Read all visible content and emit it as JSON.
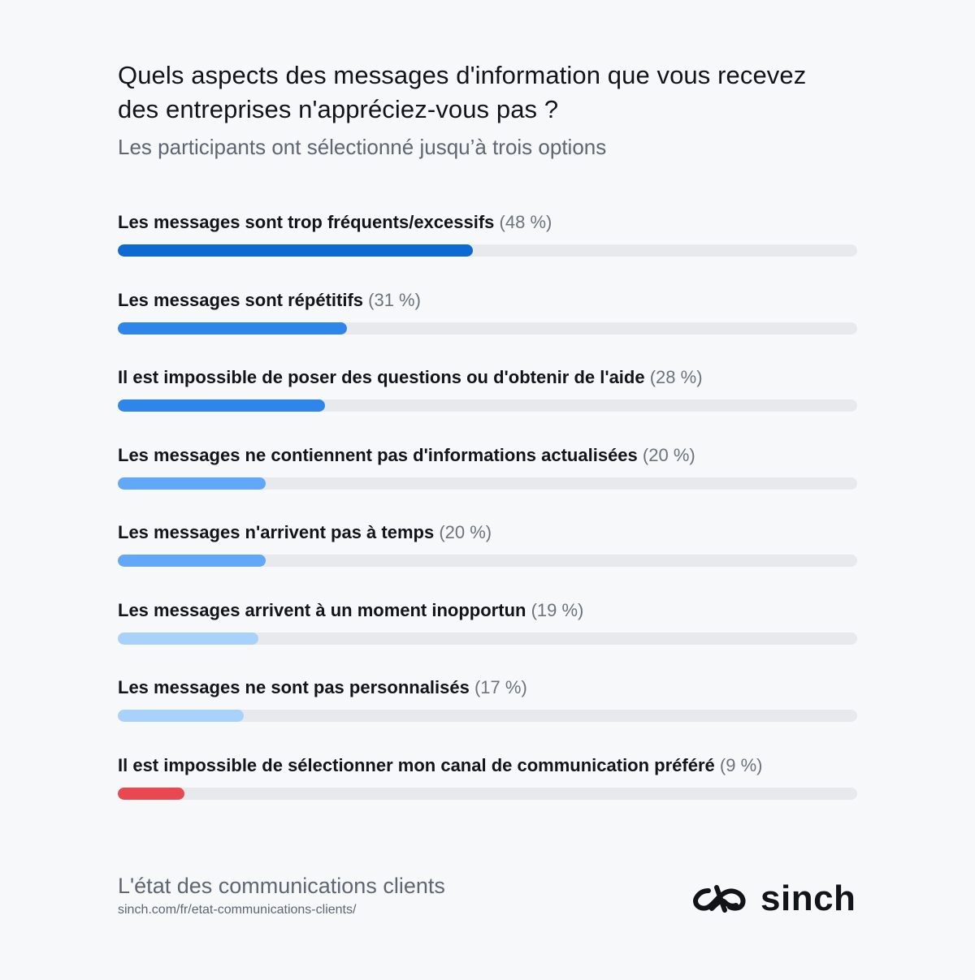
{
  "header": {
    "title_line1": "Quels aspects des messages d'information que vous recevez",
    "title_line2": "des entreprises n'appréciez-vous pas ?",
    "subtitle": "Les participants ont sélectionné jusqu’à trois options"
  },
  "chart_data": {
    "type": "bar",
    "orientation": "horizontal",
    "title": "Quels aspects des messages d'information que vous recevez des entreprises n'appréciez-vous pas ?",
    "subtitle": "Les participants ont sélectionné jusqu’à trois options",
    "xlim": [
      0,
      100
    ],
    "grid": false,
    "categories": [
      "Les messages sont trop fréquents/excessifs",
      "Les messages sont répétitifs",
      "Il est impossible de poser des questions ou d'obtenir de l'aide",
      "Les messages ne contiennent pas d'informations actualisées",
      "Les messages n'arrivent pas à temps",
      "Les messages arrivent à un moment inopportun",
      "Les messages ne sont pas personnalisés",
      "Il est impossible de sélectionner mon canal de communication préféré"
    ],
    "values": [
      48,
      31,
      28,
      20,
      20,
      19,
      17,
      9
    ],
    "value_labels": [
      "(48 %)",
      "(31 %)",
      "(28 %)",
      "(20 %)",
      "(20 %)",
      "(19 %)",
      "(17 %)",
      "(9 %)"
    ],
    "colors": [
      "#0d6ad3",
      "#2f86ea",
      "#2f86ea",
      "#62a7f8",
      "#62a7f8",
      "#a9d2fb",
      "#a9d2fb",
      "#e8484f"
    ],
    "track_color": "#e7e9ec"
  },
  "footer": {
    "title": "L'état des communications clients",
    "url": "sinch.com/fr/etat-communications-clients/"
  },
  "logo": {
    "wordmark": "sinch",
    "icon": "sinch-infinity-logo-icon"
  }
}
